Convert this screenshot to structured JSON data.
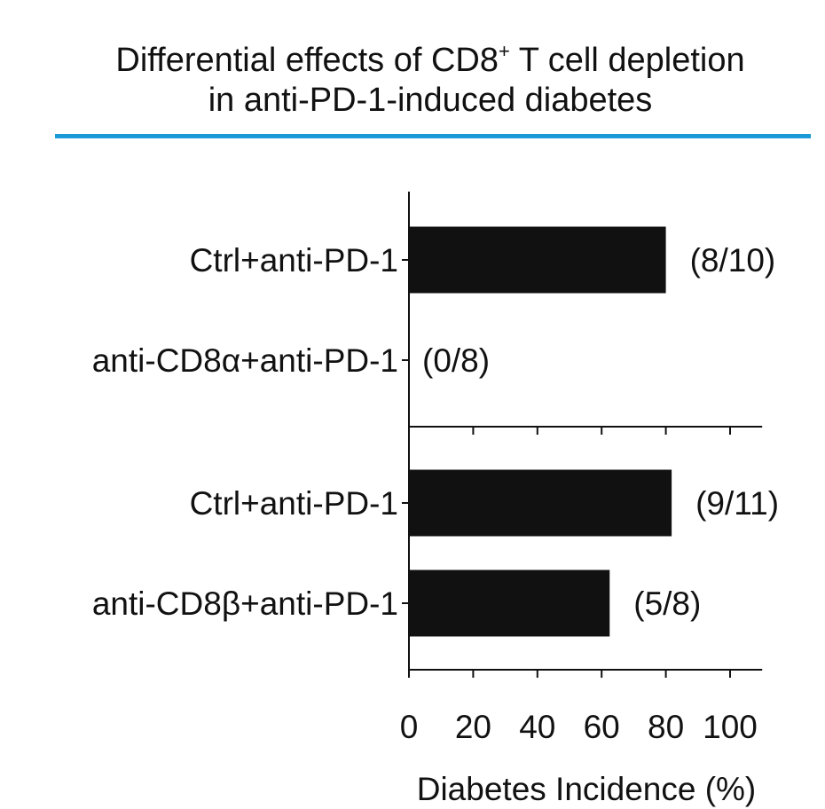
{
  "chart_data": {
    "type": "bar",
    "orientation": "horizontal",
    "title_prefix": "Differential effects of CD8",
    "title_sup": "+",
    "title_suffix": " T cell depletion",
    "title_line2": "in anti-PD-1-induced diabetes",
    "xlabel": "Diabetes Incidence (%)",
    "xlim": [
      0,
      110
    ],
    "xticks": [
      0,
      20,
      40,
      60,
      80,
      100
    ],
    "xtick_labels": [
      "0",
      "20",
      "40",
      "60",
      "80",
      "100"
    ],
    "panels": [
      {
        "bars": [
          {
            "category": "Ctrl+anti-PD-1",
            "value": 80,
            "annotation": "(8/10)"
          },
          {
            "category": "anti-CD8α+anti-PD-1",
            "value": 0,
            "annotation": "(0/8)"
          }
        ]
      },
      {
        "bars": [
          {
            "category": "Ctrl+anti-PD-1",
            "value": 81.8,
            "annotation": "(9/11)"
          },
          {
            "category": "anti-CD8β+anti-PD-1",
            "value": 62.5,
            "annotation": "(5/8)"
          }
        ]
      }
    ],
    "colors": {
      "bar": "#111111",
      "title_rule": "#1a9ad6",
      "axis": "#111111"
    }
  }
}
